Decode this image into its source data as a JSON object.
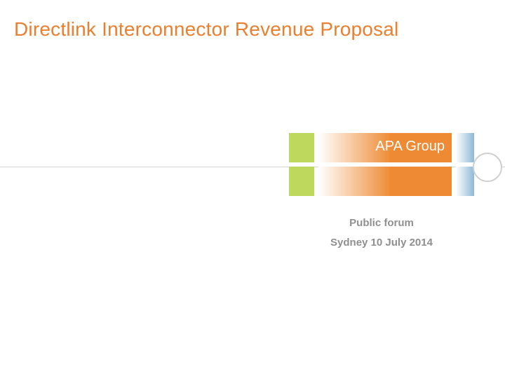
{
  "title": {
    "text": "Directlink Interconnector Revenue Proposal",
    "color": "#e97f2f",
    "fontsize": 28
  },
  "divider": {
    "color": "#d4d4d4"
  },
  "logo": {
    "brand_text": "APA Group",
    "green": "#bdd85c",
    "orange_gradient_start": "#ffffff",
    "orange_gradient_end": "#ee8a33",
    "blue_gradient_start": "#ffffff",
    "blue_gradient_end": "#8fb8d6",
    "circle_border": "#cfcfcf"
  },
  "subtitle": {
    "line1": "Public forum",
    "line2": "Sydney 10 July 2014",
    "color": "#8f8f8f",
    "fontsize": 15
  }
}
